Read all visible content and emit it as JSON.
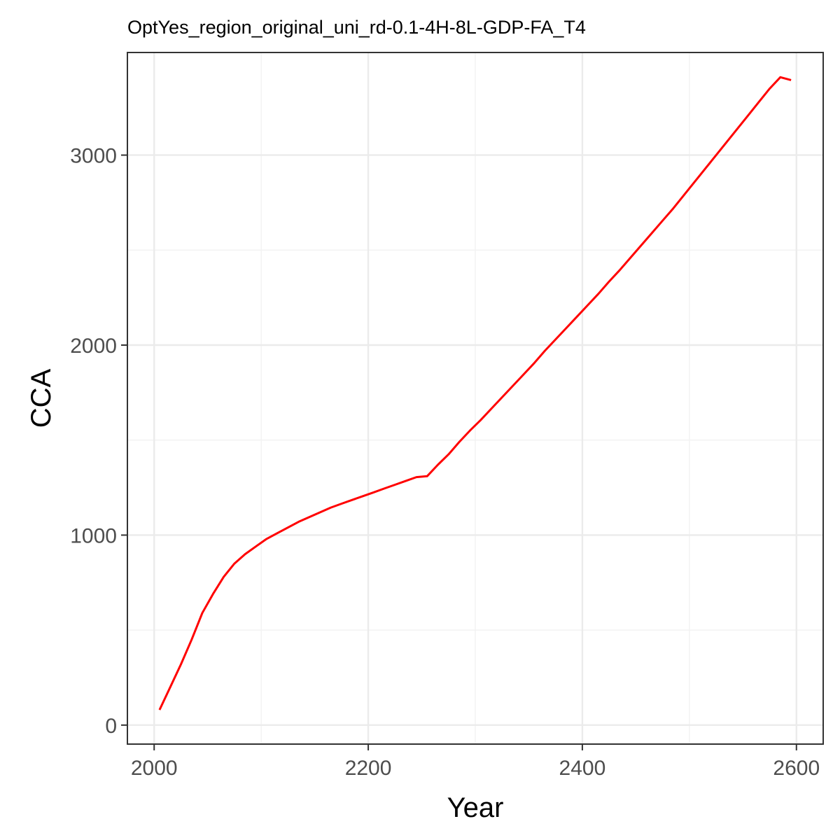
{
  "chart_data": {
    "type": "line",
    "title": "OptYes_region_original_uni_rd-0.1-4H-8L-GDP-FA_T4",
    "xlabel": "Year",
    "ylabel": "CCA",
    "xlim": [
      1975,
      2625
    ],
    "ylim": [
      -100,
      3540
    ],
    "xticks": [
      2000,
      2200,
      2400,
      2600
    ],
    "yticks": [
      0,
      1000,
      2000,
      3000
    ],
    "xticks_minor": [
      2100,
      2300,
      2500
    ],
    "yticks_minor": [
      500,
      1500,
      2500
    ],
    "xtick_labels": [
      "2000",
      "2200",
      "2400",
      "2600"
    ],
    "ytick_labels": [
      "0",
      "1000",
      "2000",
      "3000"
    ],
    "grid": true,
    "legend": "none",
    "series": [
      {
        "color": "#ff0000",
        "x": [
          2005,
          2015,
          2025,
          2035,
          2045,
          2055,
          2065,
          2075,
          2085,
          2095,
          2105,
          2115,
          2125,
          2135,
          2145,
          2155,
          2165,
          2175,
          2185,
          2195,
          2205,
          2215,
          2225,
          2235,
          2245,
          2255,
          2265,
          2275,
          2285,
          2295,
          2305,
          2315,
          2325,
          2335,
          2345,
          2355,
          2365,
          2375,
          2385,
          2395,
          2405,
          2415,
          2425,
          2435,
          2445,
          2455,
          2465,
          2475,
          2485,
          2495,
          2505,
          2515,
          2525,
          2535,
          2545,
          2555,
          2565,
          2575,
          2585,
          2595
        ],
        "y": [
          80,
          200,
          320,
          450,
          590,
          690,
          780,
          850,
          900,
          940,
          980,
          1010,
          1040,
          1070,
          1095,
          1120,
          1145,
          1165,
          1185,
          1205,
          1225,
          1245,
          1265,
          1285,
          1305,
          1310,
          1370,
          1425,
          1490,
          1550,
          1605,
          1665,
          1725,
          1785,
          1845,
          1905,
          1970,
          2030,
          2090,
          2150,
          2210,
          2270,
          2335,
          2395,
          2460,
          2525,
          2590,
          2655,
          2720,
          2790,
          2860,
          2930,
          3000,
          3070,
          3140,
          3210,
          3280,
          3350,
          3410,
          3395
        ]
      }
    ]
  }
}
